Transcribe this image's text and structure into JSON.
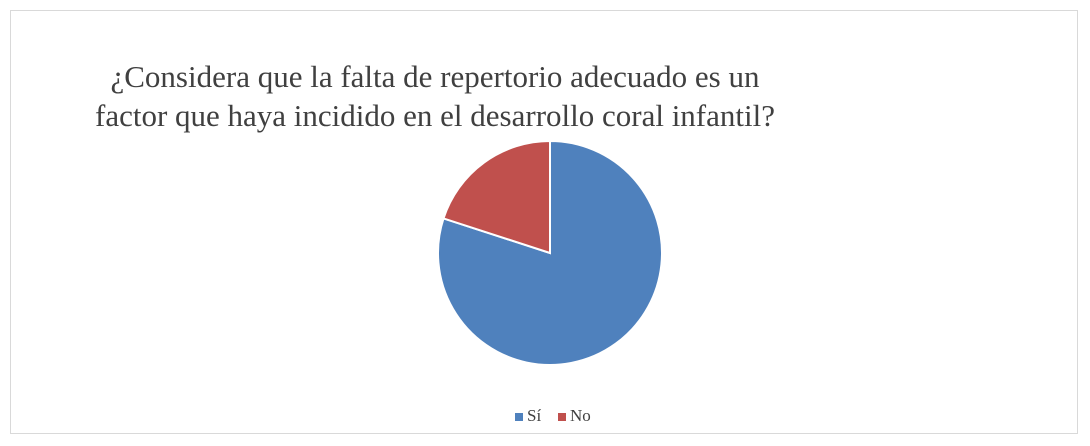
{
  "chart_data": {
    "type": "pie",
    "title": "¿Considera que la falta de repertorio adecuado es un factor que haya incidido en el desarrollo coral infantil?",
    "categories": [
      "Sí",
      "No"
    ],
    "values": [
      80,
      20
    ],
    "colors": [
      "#4f81bd",
      "#c0504d"
    ],
    "legend": "bottom"
  }
}
